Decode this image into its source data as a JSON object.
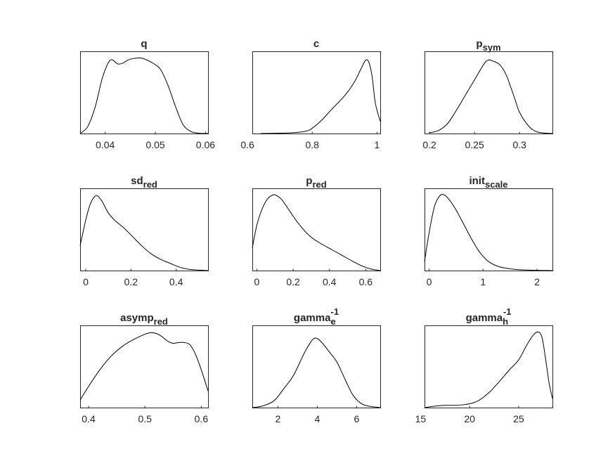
{
  "chart_data": [
    {
      "type": "line",
      "title": "q",
      "title_sub": "",
      "title_sup": "",
      "xlim": [
        0.035,
        0.0605
      ],
      "ylim": [
        0,
        1
      ],
      "xticks": [
        0.04,
        0.05,
        0.06
      ],
      "xticklabels": [
        "0.04",
        "0.05",
        "0.06"
      ],
      "x": [
        0.035,
        0.0365,
        0.038,
        0.0395,
        0.041,
        0.0425,
        0.0435,
        0.0445,
        0.0455,
        0.047,
        0.048,
        0.0495,
        0.051,
        0.0525,
        0.054,
        0.0555,
        0.057,
        0.0585,
        0.0605
      ],
      "y": [
        0.0,
        0.09,
        0.35,
        0.75,
        0.97,
        0.92,
        0.93,
        0.97,
        0.99,
        1.0,
        0.98,
        0.93,
        0.85,
        0.64,
        0.36,
        0.12,
        0.03,
        0.005,
        0.0
      ]
    },
    {
      "type": "line",
      "title": "c",
      "title_sub": "",
      "title_sup": "",
      "xlim": [
        0.615,
        1.01
      ],
      "ylim": [
        0,
        1
      ],
      "xticks": [
        0.6,
        0.8,
        1.0
      ],
      "xticklabels": [
        "0.6",
        "0.8",
        "1"
      ],
      "x": [
        0.64,
        0.7,
        0.74,
        0.78,
        0.8,
        0.83,
        0.86,
        0.9,
        0.93,
        0.95,
        0.965,
        0.975,
        0.985,
        0.995,
        1.01
      ],
      "y": [
        0.0,
        0.005,
        0.01,
        0.03,
        0.07,
        0.18,
        0.32,
        0.5,
        0.68,
        0.85,
        0.97,
        0.94,
        0.75,
        0.4,
        0.16
      ]
    },
    {
      "type": "line",
      "title": "p",
      "title_sub": "sym",
      "title_sup": "",
      "xlim": [
        0.1945,
        0.3365
      ],
      "ylim": [
        0,
        1
      ],
      "xticks": [
        0.2,
        0.25,
        0.3
      ],
      "xticklabels": [
        "0.2",
        "0.25",
        "0.3"
      ],
      "x": [
        0.2,
        0.21,
        0.22,
        0.23,
        0.24,
        0.25,
        0.26,
        0.265,
        0.27,
        0.278,
        0.285,
        0.29,
        0.295,
        0.3,
        0.31,
        0.32,
        0.3365
      ],
      "y": [
        0.01,
        0.04,
        0.13,
        0.31,
        0.51,
        0.71,
        0.91,
        0.97,
        0.96,
        0.91,
        0.78,
        0.62,
        0.45,
        0.28,
        0.1,
        0.02,
        0.0
      ]
    },
    {
      "type": "line",
      "title": "sd",
      "title_sub": "red",
      "title_sup": "",
      "xlim": [
        -0.025,
        0.541
      ],
      "ylim": [
        0,
        1
      ],
      "xticks": [
        0,
        0.2,
        0.4
      ],
      "xticklabels": [
        "0",
        "0.2",
        "0.4"
      ],
      "x": [
        -0.025,
        0.0,
        0.02,
        0.04,
        0.055,
        0.075,
        0.1,
        0.13,
        0.17,
        0.21,
        0.25,
        0.29,
        0.33,
        0.37,
        0.41,
        0.46,
        0.541
      ],
      "y": [
        0.33,
        0.67,
        0.88,
        0.98,
        0.98,
        0.9,
        0.76,
        0.66,
        0.56,
        0.44,
        0.32,
        0.22,
        0.15,
        0.1,
        0.05,
        0.015,
        0.0
      ]
    },
    {
      "type": "line",
      "title": "p",
      "title_sub": "red",
      "title_sup": "",
      "xlim": [
        -0.025,
        0.68
      ],
      "ylim": [
        0,
        1
      ],
      "xticks": [
        0,
        0.2,
        0.4,
        0.6
      ],
      "xticklabels": [
        "0",
        "0.2",
        "0.4",
        "0.6"
      ],
      "x": [
        -0.025,
        0.0,
        0.03,
        0.06,
        0.09,
        0.11,
        0.14,
        0.18,
        0.23,
        0.29,
        0.35,
        0.41,
        0.47,
        0.53,
        0.58,
        0.63,
        0.68
      ],
      "y": [
        0.3,
        0.6,
        0.82,
        0.95,
        1.0,
        0.99,
        0.93,
        0.79,
        0.62,
        0.46,
        0.36,
        0.28,
        0.2,
        0.12,
        0.06,
        0.02,
        0.0
      ]
    },
    {
      "type": "line",
      "title": "init",
      "title_sub": "scale",
      "title_sup": "",
      "xlim": [
        -0.085,
        2.285
      ],
      "ylim": [
        0,
        1
      ],
      "xticks": [
        0,
        1,
        2
      ],
      "xticklabels": [
        "0",
        "1",
        "2"
      ],
      "x": [
        -0.085,
        0.0,
        0.1,
        0.2,
        0.28,
        0.38,
        0.5,
        0.65,
        0.8,
        0.95,
        1.1,
        1.3,
        1.6,
        1.9,
        2.285
      ],
      "y": [
        0.12,
        0.5,
        0.85,
        0.99,
        1.0,
        0.93,
        0.8,
        0.6,
        0.4,
        0.23,
        0.12,
        0.05,
        0.015,
        0.005,
        0.0
      ]
    },
    {
      "type": "line",
      "title": "asymp",
      "title_sub": "red",
      "title_sup": "",
      "xlim": [
        0.385,
        0.612
      ],
      "ylim": [
        0,
        1
      ],
      "xticks": [
        0.4,
        0.5,
        0.6
      ],
      "xticklabels": [
        "0.4",
        "0.5",
        "0.6"
      ],
      "x": [
        0.385,
        0.4,
        0.42,
        0.44,
        0.46,
        0.48,
        0.5,
        0.51,
        0.52,
        0.53,
        0.54,
        0.55,
        0.56,
        0.57,
        0.58,
        0.59,
        0.6,
        0.612
      ],
      "y": [
        0.1,
        0.28,
        0.5,
        0.68,
        0.81,
        0.9,
        0.97,
        0.99,
        0.98,
        0.94,
        0.88,
        0.85,
        0.86,
        0.86,
        0.83,
        0.7,
        0.5,
        0.22
      ]
    },
    {
      "type": "line",
      "title": "gamma",
      "title_sub": "e",
      "title_sup": "-1",
      "xlim": [
        0.7,
        7.2
      ],
      "ylim": [
        0,
        1
      ],
      "xticks": [
        2,
        4,
        6
      ],
      "xticklabels": [
        "2",
        "4",
        "6"
      ],
      "x": [
        0.7,
        1.2,
        1.8,
        2.3,
        2.8,
        3.3,
        3.65,
        3.9,
        4.2,
        4.6,
        5.0,
        5.4,
        5.8,
        6.2,
        6.6,
        7.2
      ],
      "y": [
        0.0,
        0.02,
        0.09,
        0.25,
        0.43,
        0.7,
        0.86,
        0.92,
        0.87,
        0.74,
        0.6,
        0.38,
        0.17,
        0.06,
        0.02,
        0.0
      ]
    },
    {
      "type": "line",
      "title": "gamma",
      "title_sub": "h",
      "title_sup": "-1",
      "xlim": [
        15.4,
        28.45
      ],
      "ylim": [
        0,
        1
      ],
      "xticks": [
        15,
        20,
        25
      ],
      "xticklabels": [
        "15",
        "20",
        "25"
      ],
      "x": [
        15.4,
        16.5,
        17.5,
        18.5,
        19.5,
        20.3,
        21.0,
        22.0,
        23.0,
        24.0,
        25.0,
        25.8,
        26.5,
        27.0,
        27.4,
        27.8,
        28.1,
        28.45
      ],
      "y": [
        0.0,
        0.02,
        0.03,
        0.03,
        0.04,
        0.06,
        0.1,
        0.2,
        0.34,
        0.49,
        0.63,
        0.82,
        0.96,
        1.0,
        0.92,
        0.6,
        0.33,
        0.12
      ]
    }
  ]
}
